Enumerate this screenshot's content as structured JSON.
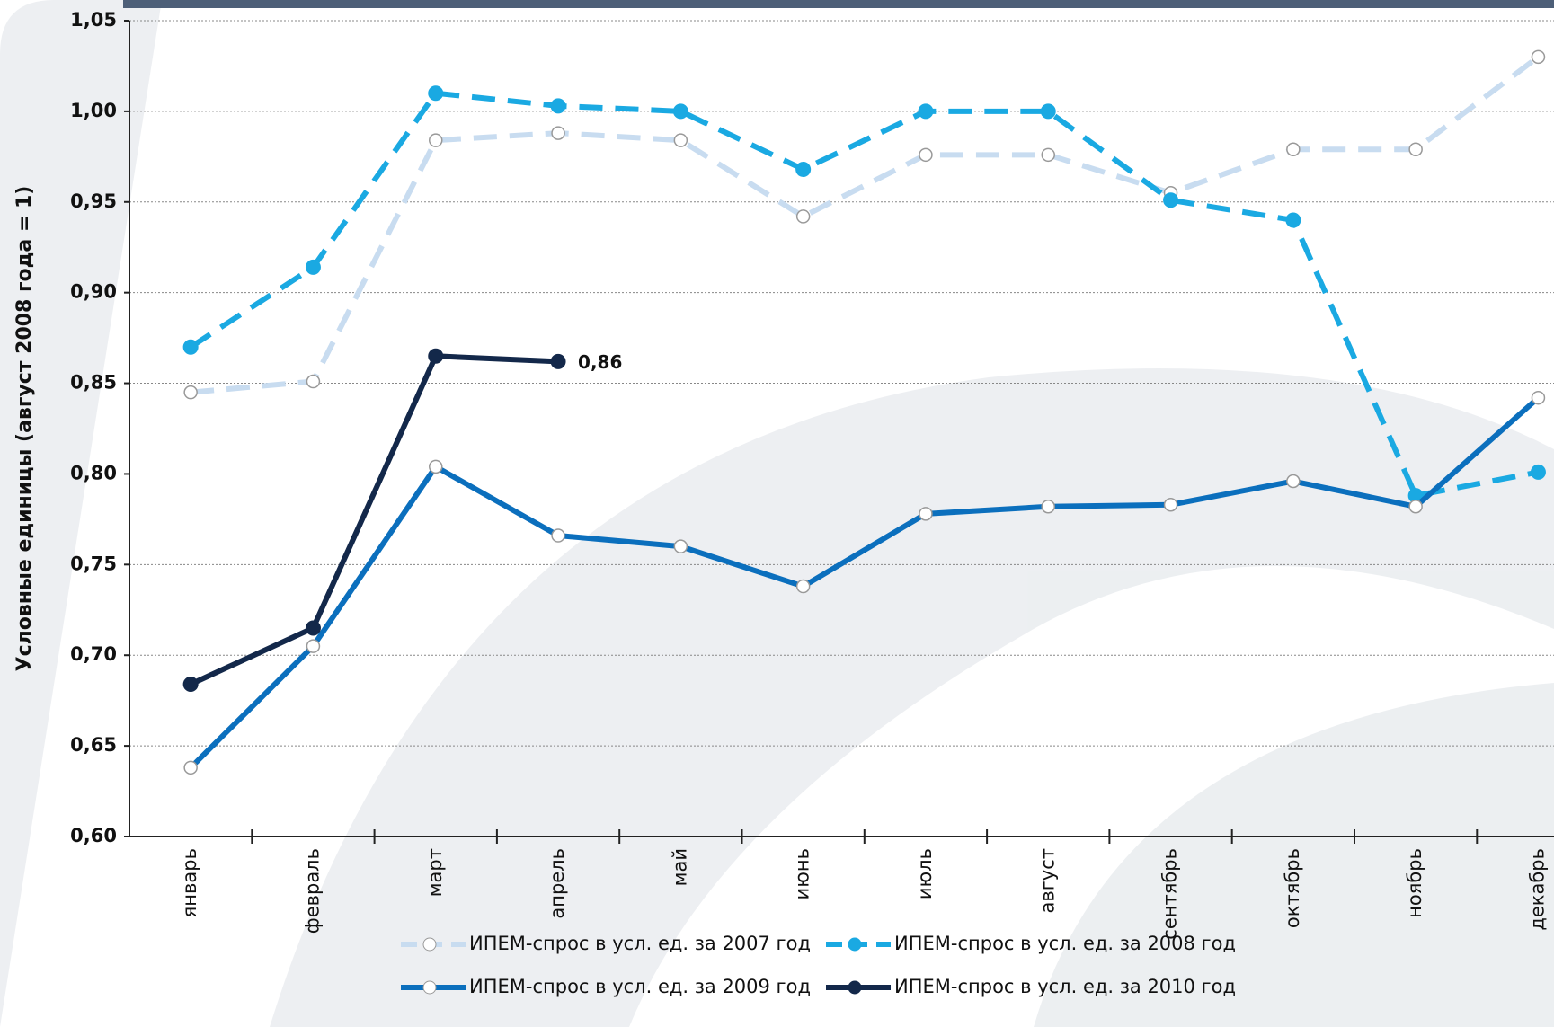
{
  "chart_data": {
    "type": "line",
    "y_label": "Условные единицы (август 2008 года = 1)",
    "categories": [
      "январь",
      "февраль",
      "март",
      "апрель",
      "май",
      "июнь",
      "июль",
      "август",
      "сентябрь",
      "октябрь",
      "ноябрь",
      "декабрь"
    ],
    "series": [
      {
        "name": "ИПЕМ-спрос в усл. ед. за 2007 год",
        "color": "#c8dcf0",
        "dash": true,
        "marker": "hollow",
        "values": [
          0.845,
          0.851,
          0.984,
          0.988,
          0.984,
          0.942,
          0.976,
          0.976,
          0.955,
          0.979,
          0.979,
          1.03
        ]
      },
      {
        "name": "ИПЕМ-спрос в усл. ед. за 2008 год",
        "color": "#1aa9e2",
        "dash": true,
        "marker": "filled",
        "values": [
          0.87,
          0.914,
          1.01,
          1.003,
          1.0,
          0.968,
          1.0,
          1.0,
          0.951,
          0.94,
          0.788,
          0.801
        ]
      },
      {
        "name": "ИПЕМ-спрос в усл. ед. за 2009 год",
        "color": "#0b6fbd",
        "dash": false,
        "marker": "hollow",
        "values": [
          0.638,
          0.705,
          0.804,
          0.766,
          0.76,
          0.738,
          0.778,
          0.782,
          0.783,
          0.796,
          0.782,
          0.842
        ]
      },
      {
        "name": "ИПЕМ-спрос в усл. ед. за 2010 год",
        "color": "#13284a",
        "dash": false,
        "marker": "filled",
        "values": [
          0.684,
          0.715,
          0.865,
          0.862,
          null,
          null,
          null,
          null,
          null,
          null,
          null,
          null
        ],
        "value_labels": [
          null,
          null,
          null,
          "0,86",
          null,
          null,
          null,
          null,
          null,
          null,
          null,
          null
        ]
      }
    ],
    "ylim": [
      0.6,
      1.05
    ],
    "yticks": [
      {
        "value": 0.6,
        "label": "0,60"
      },
      {
        "value": 0.65,
        "label": "0,65"
      },
      {
        "value": 0.7,
        "label": "0,70"
      },
      {
        "value": 0.75,
        "label": "0,75"
      },
      {
        "value": 0.8,
        "label": "0,80"
      },
      {
        "value": 0.85,
        "label": "0,85"
      },
      {
        "value": 0.9,
        "label": "0,90"
      },
      {
        "value": 0.95,
        "label": "0,95"
      },
      {
        "value": 1.0,
        "label": "1,00"
      },
      {
        "value": 1.05,
        "label": "1,05"
      }
    ],
    "grid": true
  }
}
